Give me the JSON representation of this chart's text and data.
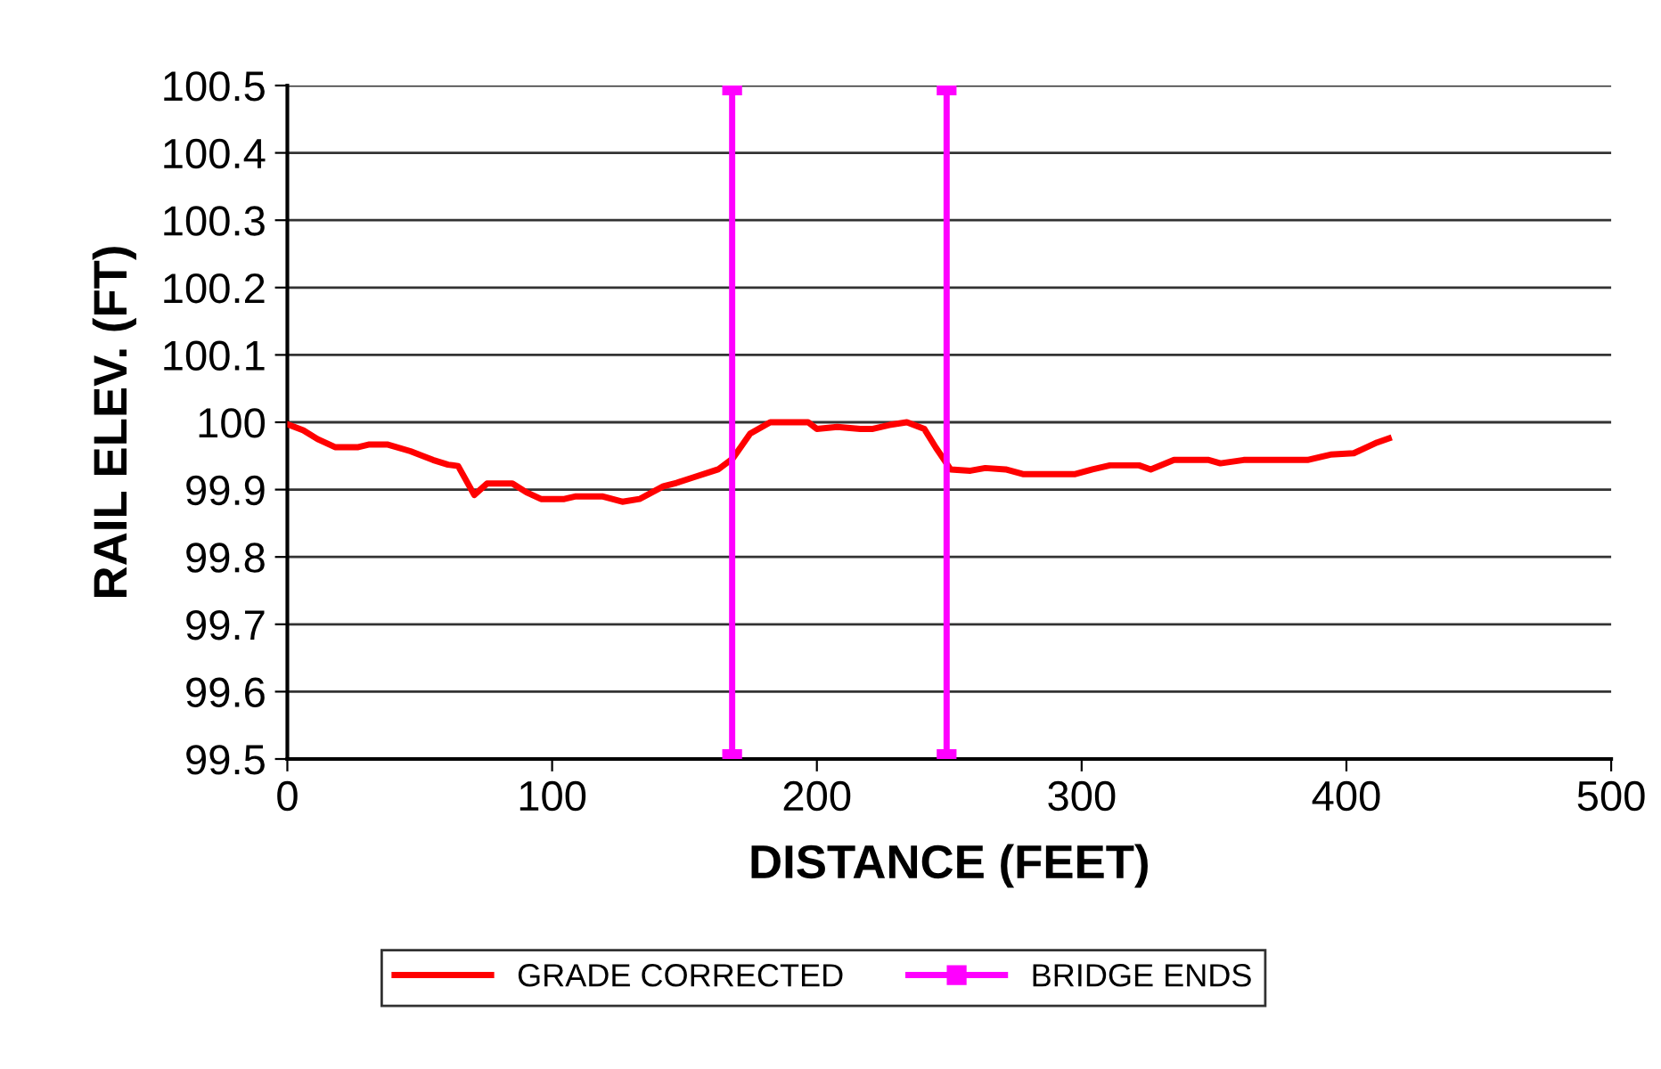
{
  "chart_data": {
    "type": "line",
    "xlabel": "DISTANCE (FEET)",
    "ylabel": "RAIL ELEV. (FT)",
    "xlim": [
      0,
      500
    ],
    "xticks": [
      0,
      100,
      200,
      300,
      400,
      500
    ],
    "ylim": [
      99.5,
      100.5
    ],
    "yticks": [
      {
        "value": 99.5,
        "label": "99.5"
      },
      {
        "value": 99.6,
        "label": "99.6"
      },
      {
        "value": 99.7,
        "label": "99.7"
      },
      {
        "value": 99.8,
        "label": "99.8"
      },
      {
        "value": 99.9,
        "label": "99.9"
      },
      {
        "value": 100,
        "label": "100"
      },
      {
        "value": 100.1,
        "label": "100.1"
      },
      {
        "value": 100.2,
        "label": "100.2"
      },
      {
        "value": 100.3,
        "label": "100.3"
      },
      {
        "value": 100.4,
        "label": "100.4"
      },
      {
        "value": 100.5,
        "label": "100.5"
      }
    ],
    "grid": "y",
    "legend": "bottom",
    "series": [
      {
        "name": "GRADE CORRECTED",
        "color": "#ff0000",
        "marker": "none",
        "x": [
          0,
          6,
          11.4,
          18,
          26.8,
          31,
          37.7,
          46.5,
          55,
          60.7,
          64.5,
          70.6,
          75.4,
          85,
          90.3,
          95.8,
          104.6,
          109,
          118.9,
          126.5,
          133,
          142,
          147,
          154,
          162.7,
          168.2,
          174.8,
          182.4,
          196.7,
          200,
          207.7,
          216.4,
          220.8,
          227.4,
          234,
          240.6,
          245,
          250.5,
          258,
          263.6,
          271.3,
          277.8,
          288.8,
          297.6,
          304.1,
          310.7,
          321.7,
          326.1,
          334.9,
          348,
          352.4,
          361.2,
          385.3,
          394,
          402.8,
          411.6,
          416
        ],
        "values": [
          99.997,
          99.988,
          99.975,
          99.963,
          99.963,
          99.967,
          99.967,
          99.957,
          99.944,
          99.937,
          99.935,
          99.892,
          99.909,
          99.909,
          99.896,
          99.886,
          99.886,
          99.89,
          99.89,
          99.882,
          99.886,
          99.905,
          99.91,
          99.919,
          99.93,
          99.946,
          99.983,
          100.0,
          100.0,
          99.99,
          99.993,
          99.99,
          99.99,
          99.996,
          100.0,
          99.99,
          99.962,
          99.93,
          99.928,
          99.932,
          99.93,
          99.923,
          99.923,
          99.923,
          99.93,
          99.936,
          99.936,
          99.93,
          99.944,
          99.944,
          99.939,
          99.944,
          99.944,
          99.952,
          99.954,
          99.97,
          99.976
        ]
      },
      {
        "name": "BRIDGE ENDS",
        "color": "#ff00ff",
        "marker": "square",
        "x": [
          168,
          168,
          null,
          249,
          249
        ],
        "values": [
          99.5,
          100.5,
          null,
          99.5,
          100.5
        ]
      }
    ]
  }
}
